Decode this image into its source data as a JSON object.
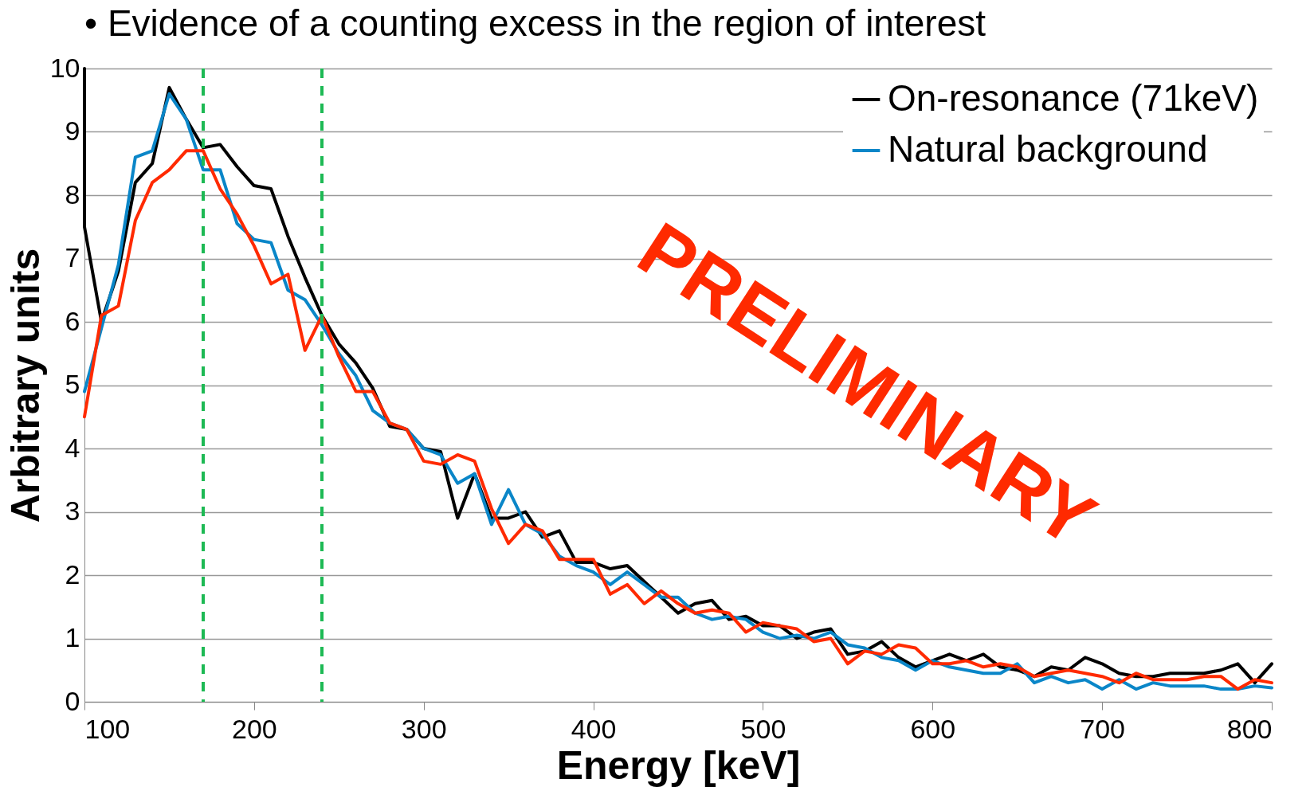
{
  "chart_data": {
    "type": "line",
    "title": "• Evidence of a counting excess in the region of interest",
    "xlabel": "Energy [keV]",
    "ylabel": "Arbitrary units",
    "x": [
      100,
      110,
      120,
      130,
      140,
      150,
      160,
      170,
      180,
      190,
      200,
      210,
      220,
      230,
      240,
      250,
      260,
      270,
      280,
      290,
      300,
      310,
      320,
      330,
      340,
      350,
      360,
      370,
      380,
      390,
      400,
      410,
      420,
      430,
      440,
      450,
      460,
      470,
      480,
      490,
      500,
      510,
      520,
      530,
      540,
      550,
      560,
      570,
      580,
      590,
      600,
      610,
      620,
      630,
      640,
      650,
      660,
      670,
      680,
      690,
      700,
      710,
      720,
      730,
      740,
      750,
      760,
      770,
      780,
      790,
      800
    ],
    "xlim": [
      100,
      800
    ],
    "xticks": [
      100,
      200,
      300,
      400,
      500,
      600,
      700,
      800
    ],
    "ylim": [
      0,
      10
    ],
    "yticks": [
      0,
      1,
      2,
      3,
      4,
      5,
      6,
      7,
      8,
      9,
      10
    ],
    "grid": "y",
    "legend": "top right",
    "series": [
      {
        "name": "On-resonance (71keV)",
        "color": "#000000",
        "x": [
          100,
          100,
          110,
          120,
          130,
          140,
          150,
          160,
          170,
          180,
          190,
          200,
          210,
          220,
          230,
          240,
          250,
          260,
          270,
          280,
          290,
          300,
          310,
          320,
          330,
          340,
          350,
          360,
          370,
          380,
          390,
          400,
          410,
          420,
          430,
          440,
          450,
          460,
          470,
          480,
          490,
          500,
          510,
          520,
          530,
          540,
          550,
          560,
          570,
          580,
          590,
          600,
          610,
          620,
          630,
          640,
          650,
          660,
          670,
          680,
          690,
          700,
          710,
          720,
          730,
          740,
          750,
          760,
          770,
          780,
          790,
          800
        ],
        "values": [
          10,
          7.5,
          6.0,
          6.8,
          8.2,
          8.5,
          9.7,
          9.2,
          8.75,
          8.8,
          8.45,
          8.15,
          8.1,
          7.35,
          6.7,
          6.1,
          5.65,
          5.35,
          4.95,
          4.35,
          4.3,
          4.0,
          3.95,
          2.9,
          3.6,
          2.9,
          2.9,
          3.0,
          2.6,
          2.7,
          2.2,
          2.2,
          2.1,
          2.15,
          1.9,
          1.65,
          1.4,
          1.55,
          1.6,
          1.3,
          1.35,
          1.2,
          1.2,
          1.0,
          1.1,
          1.15,
          0.75,
          0.8,
          0.95,
          0.7,
          0.55,
          0.65,
          0.75,
          0.65,
          0.75,
          0.55,
          0.5,
          0.4,
          0.55,
          0.5,
          0.7,
          0.6,
          0.45,
          0.4,
          0.4,
          0.45,
          0.45,
          0.45,
          0.5,
          0.6,
          0.3,
          0.6
        ]
      },
      {
        "name": "Natural background",
        "color": "#0a86c8",
        "values": [
          4.9,
          5.9,
          6.9,
          8.6,
          8.7,
          9.6,
          9.2,
          8.4,
          8.4,
          7.55,
          7.3,
          7.25,
          6.5,
          6.35,
          5.95,
          5.5,
          5.15,
          4.6,
          4.4,
          4.3,
          4.0,
          3.9,
          3.45,
          3.6,
          2.8,
          3.35,
          2.8,
          2.65,
          2.3,
          2.15,
          2.05,
          1.85,
          2.05,
          1.85,
          1.65,
          1.65,
          1.4,
          1.3,
          1.35,
          1.3,
          1.1,
          1.0,
          1.05,
          1.0,
          1.1,
          0.9,
          0.85,
          0.7,
          0.65,
          0.5,
          0.65,
          0.55,
          0.5,
          0.45,
          0.45,
          0.6,
          0.3,
          0.4,
          0.3,
          0.35,
          0.2,
          0.35,
          0.2,
          0.3,
          0.25,
          0.25,
          0.25,
          0.2,
          0.2,
          0.25,
          0.22
        ]
      },
      {
        "color": "#ff2a00",
        "values": [
          4.5,
          6.1,
          6.25,
          7.6,
          8.2,
          8.4,
          8.7,
          8.7,
          8.1,
          7.7,
          7.2,
          6.6,
          6.75,
          5.55,
          6.1,
          5.45,
          4.9,
          4.9,
          4.4,
          4.3,
          3.8,
          3.75,
          3.9,
          3.8,
          3.05,
          2.5,
          2.8,
          2.7,
          2.25,
          2.25,
          2.25,
          1.7,
          1.85,
          1.55,
          1.75,
          1.55,
          1.4,
          1.45,
          1.4,
          1.1,
          1.25,
          1.2,
          1.15,
          0.95,
          1.0,
          0.6,
          0.8,
          0.75,
          0.9,
          0.85,
          0.6,
          0.6,
          0.65,
          0.55,
          0.6,
          0.55,
          0.4,
          0.45,
          0.5,
          0.45,
          0.4,
          0.3,
          0.45,
          0.35,
          0.35,
          0.35,
          0.4,
          0.4,
          0.2,
          0.35,
          0.3
        ]
      }
    ],
    "ref_lines": [
      {
        "axis": "x",
        "value": 170,
        "color": "#1db954",
        "line_style": "dashed"
      },
      {
        "axis": "x",
        "value": 240,
        "color": "#1db954",
        "line_style": "dashed"
      }
    ],
    "annotations": [
      "PRELIMINARY"
    ]
  }
}
